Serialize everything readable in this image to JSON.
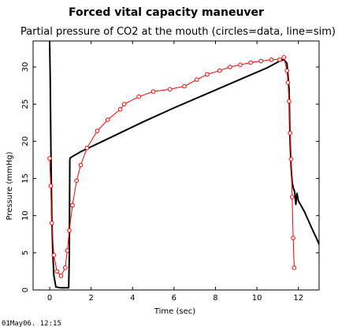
{
  "timestamp": "01May06. 12:15",
  "chart_data": {
    "type": "line",
    "title": "Forced vital capacity maneuver",
    "subtitle": "Partial pressure of CO2 at the mouth (circles=data, line=sim)",
    "xlabel": "Time (sec)",
    "ylabel": "Pressure (mmHg)",
    "xlim": [
      -0.8,
      13
    ],
    "ylim": [
      0,
      33.5
    ],
    "xticks": [
      0,
      2,
      4,
      6,
      8,
      10,
      12
    ],
    "yticks": [
      0,
      5,
      10,
      15,
      20,
      25,
      30
    ],
    "grid": false,
    "colors": {
      "data": "#ff0000",
      "sim": "#000000",
      "axes": "#000000"
    },
    "series": [
      {
        "marker": "circle",
        "points": [
          [
            0.0,
            17.7
          ],
          [
            0.05,
            14.0
          ],
          [
            0.1,
            9.0
          ],
          [
            0.2,
            4.7
          ],
          [
            0.35,
            2.5
          ],
          [
            0.55,
            1.9
          ],
          [
            0.75,
            3.0
          ],
          [
            0.85,
            5.3
          ],
          [
            0.95,
            8.0
          ],
          [
            1.1,
            11.4
          ],
          [
            1.3,
            14.7
          ],
          [
            1.5,
            16.8
          ],
          [
            1.8,
            19.1
          ],
          [
            2.3,
            21.4
          ],
          [
            2.8,
            22.9
          ],
          [
            3.4,
            24.3
          ],
          [
            3.6,
            25.0
          ],
          [
            4.3,
            26.0
          ],
          [
            5.0,
            26.7
          ],
          [
            5.8,
            27.0
          ],
          [
            6.5,
            27.4
          ],
          [
            7.1,
            28.3
          ],
          [
            7.6,
            29.0
          ],
          [
            8.2,
            29.5
          ],
          [
            8.7,
            30.0
          ],
          [
            9.2,
            30.3
          ],
          [
            9.7,
            30.6
          ],
          [
            10.2,
            30.8
          ],
          [
            10.7,
            31.0
          ],
          [
            11.1,
            31.0
          ],
          [
            11.3,
            31.3
          ],
          [
            11.45,
            29.5
          ],
          [
            11.5,
            27.9
          ],
          [
            11.55,
            25.4
          ],
          [
            11.6,
            21.1
          ],
          [
            11.65,
            17.6
          ],
          [
            11.7,
            12.5
          ],
          [
            11.75,
            7.0
          ],
          [
            11.8,
            3.0
          ]
        ]
      },
      {
        "marker": "none",
        "points": [
          [
            0.0,
            33.5
          ],
          [
            0.03,
            28.0
          ],
          [
            0.06,
            19.0
          ],
          [
            0.1,
            10.0
          ],
          [
            0.15,
            5.0
          ],
          [
            0.2,
            2.0
          ],
          [
            0.3,
            0.4
          ],
          [
            0.5,
            0.3
          ],
          [
            0.92,
            0.3
          ],
          [
            0.95,
            5.0
          ],
          [
            0.97,
            17.5
          ],
          [
            1.0,
            17.8
          ],
          [
            1.5,
            18.6
          ],
          [
            3.0,
            20.6
          ],
          [
            4.5,
            22.6
          ],
          [
            6.0,
            24.5
          ],
          [
            7.5,
            26.3
          ],
          [
            9.0,
            28.1
          ],
          [
            10.5,
            29.9
          ],
          [
            11.1,
            30.8
          ],
          [
            11.3,
            31.0
          ],
          [
            11.45,
            30.5
          ],
          [
            11.55,
            27.0
          ],
          [
            11.6,
            20.0
          ],
          [
            11.65,
            16.5
          ],
          [
            11.7,
            14.5
          ],
          [
            11.75,
            13.8
          ],
          [
            11.82,
            13.2
          ],
          [
            11.88,
            11.5
          ],
          [
            11.93,
            13.0
          ],
          [
            12.0,
            12.0
          ],
          [
            12.3,
            10.5
          ],
          [
            12.6,
            8.6
          ],
          [
            12.9,
            6.8
          ],
          [
            13.2,
            4.8
          ],
          [
            13.5,
            3.0
          ],
          [
            13.8,
            1.6
          ],
          [
            14.0,
            1.0
          ]
        ]
      }
    ]
  }
}
